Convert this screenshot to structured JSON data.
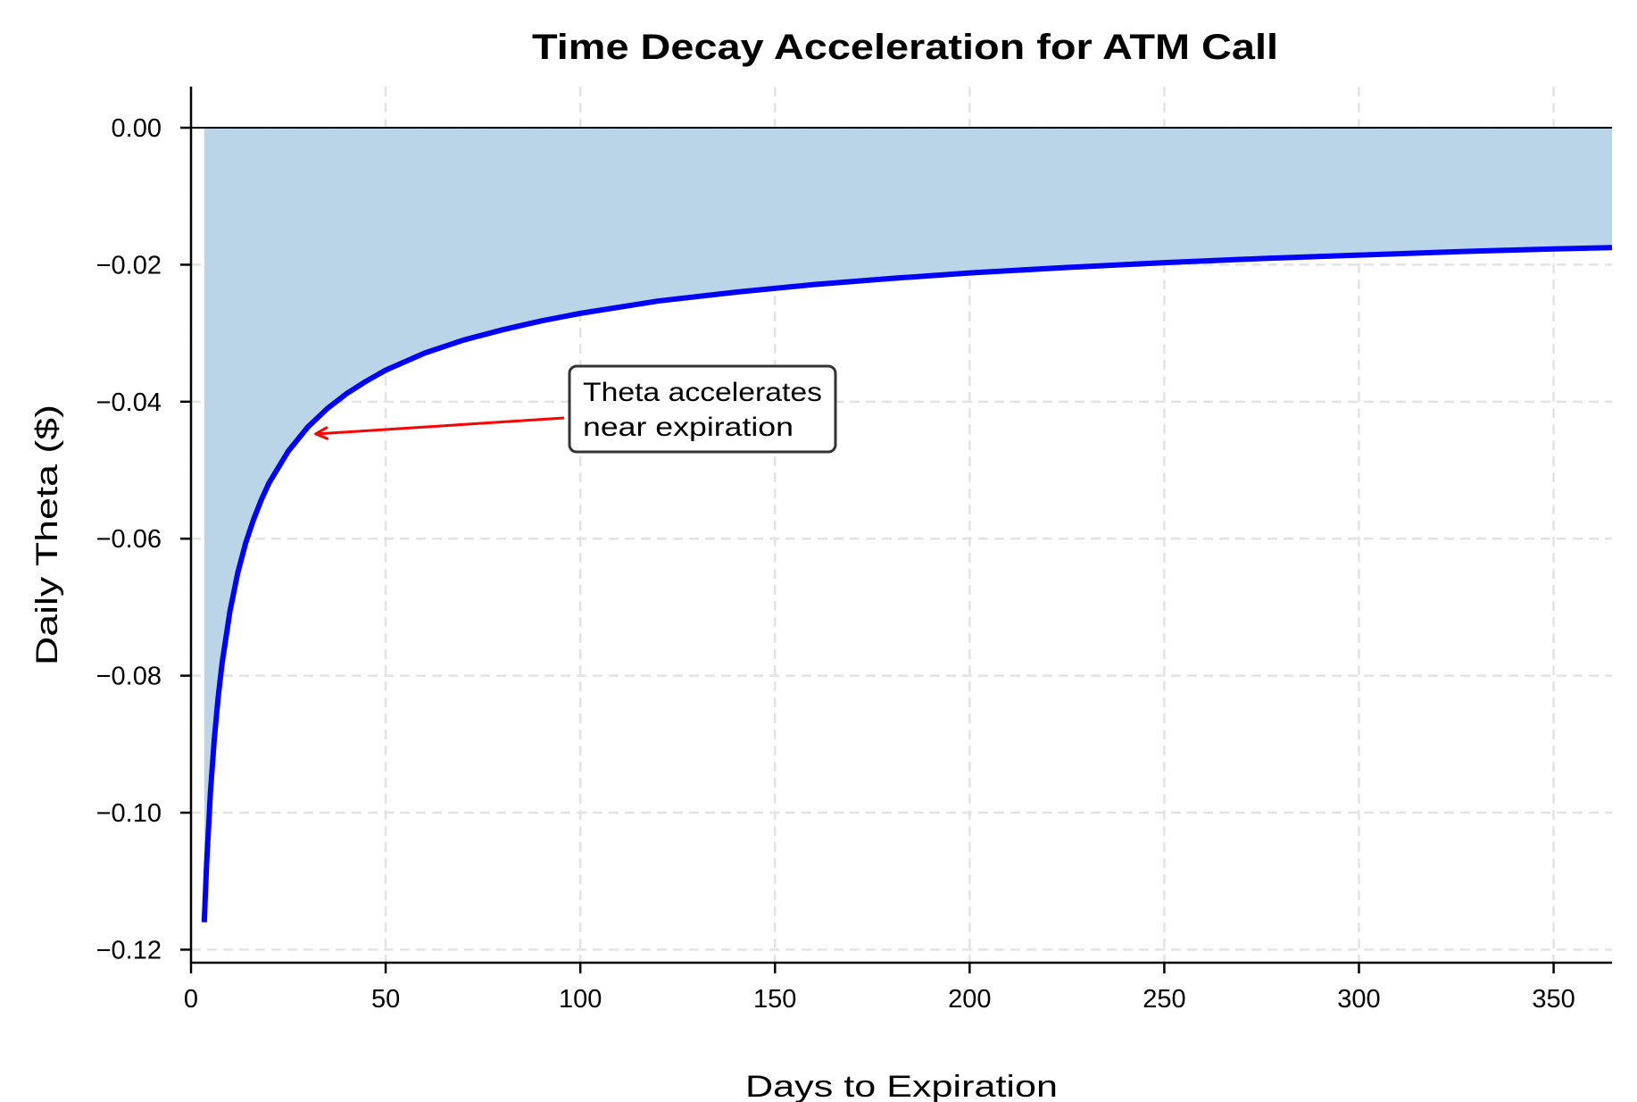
{
  "chart_data": {
    "type": "area",
    "title": "Time Decay Acceleration for ATM Call",
    "xlabel": "Days to Expiration",
    "ylabel": "Daily Theta ($)",
    "xlim": [
      0,
      365
    ],
    "ylim": [
      -0.1219,
      0.006
    ],
    "grid": true,
    "legend": null,
    "x_ticks": [
      0,
      50,
      100,
      150,
      200,
      250,
      300,
      350
    ],
    "x_tick_labels": [
      "0",
      "50",
      "100",
      "150",
      "200",
      "250",
      "300",
      "350"
    ],
    "y_ticks": [
      0.0,
      -0.02,
      -0.04,
      -0.06,
      -0.08,
      -0.1,
      -0.12
    ],
    "y_tick_labels": [
      "0.00",
      "−0.02",
      "−0.04",
      "−0.06",
      "−0.08",
      "−0.10",
      "−0.12"
    ],
    "series": [
      {
        "name": "Daily Theta",
        "color": "#0000ff",
        "fill_color": "#bad5e7",
        "fill_to": 0,
        "x": [
          3.4,
          4,
          5,
          6,
          7,
          8,
          10,
          12,
          14,
          16,
          18,
          20,
          25,
          30,
          35,
          40,
          45,
          50,
          60,
          70,
          80,
          90,
          100,
          120,
          140,
          160,
          180,
          200,
          225,
          250,
          275,
          300,
          325,
          350,
          365
        ],
        "values": [
          -0.116,
          -0.1075,
          -0.0969,
          -0.0891,
          -0.083,
          -0.0781,
          -0.0706,
          -0.065,
          -0.0607,
          -0.0573,
          -0.0544,
          -0.0519,
          -0.0472,
          -0.0437,
          -0.041,
          -0.0388,
          -0.037,
          -0.0354,
          -0.0329,
          -0.031,
          -0.0295,
          -0.0282,
          -0.0271,
          -0.0253,
          -0.024,
          -0.0229,
          -0.022,
          -0.0212,
          -0.0204,
          -0.0197,
          -0.0191,
          -0.0186,
          -0.0181,
          -0.0177,
          -0.0175
        ]
      }
    ],
    "reference_line": {
      "y": 0.0,
      "color": "#000000"
    },
    "annotations": [
      {
        "text_lines": [
          "Theta accelerates",
          "near expiration"
        ],
        "xy": [
          32,
          -0.0447
        ],
        "xytext": [
          100,
          -0.041
        ],
        "arrow_color": "#ff0000",
        "box_edge_color": "#333333",
        "box_face_color": "#ffffff"
      }
    ]
  }
}
